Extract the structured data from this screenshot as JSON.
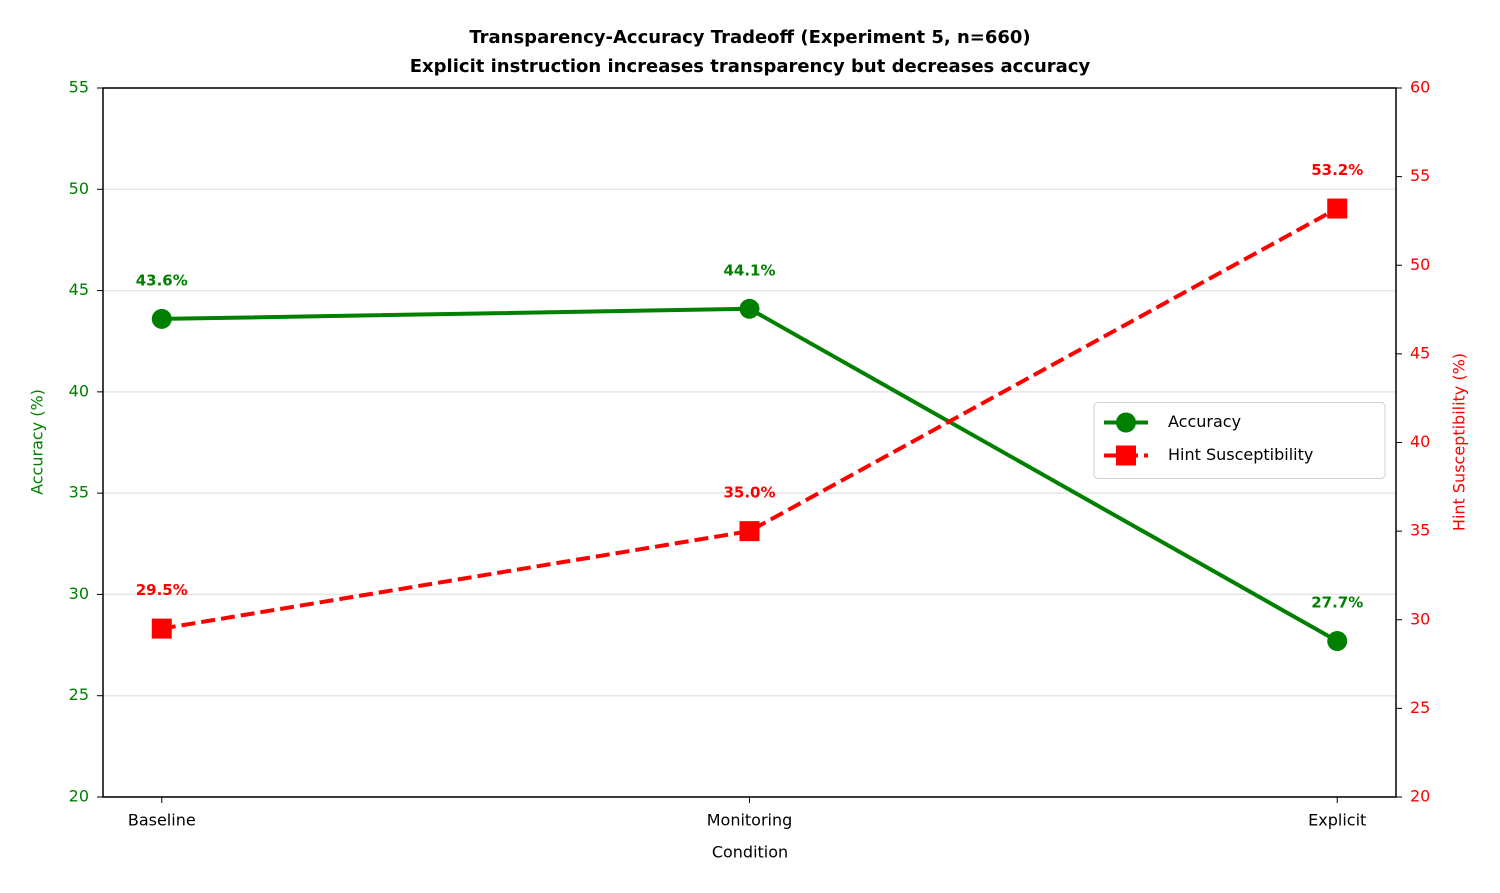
{
  "chart_data": {
    "type": "line",
    "title": "Transparency-Accuracy Tradeoff (Experiment 5, n=660)",
    "subtitle": "Explicit instruction increases transparency but decreases accuracy",
    "x_label": "Condition",
    "y_label": "Accuracy (%)",
    "y2_label": "Hint Susceptibility (%)",
    "categories": [
      "Baseline",
      "Monitoring",
      "Explicit"
    ],
    "series": [
      {
        "name": "Accuracy",
        "color": "#008000",
        "marker": "circle",
        "linestyle": "solid",
        "values": [
          43.6,
          44.1,
          27.7
        ],
        "value_labels": [
          "43.6%",
          "44.1%",
          "27.7%"
        ]
      },
      {
        "name": "Hint Susceptibility",
        "color": "#ff0000",
        "marker": "square",
        "linestyle": "dashed",
        "axis": "y2",
        "values": [
          29.5,
          35.0,
          53.2
        ],
        "value_labels": [
          "29.5%",
          "35.0%",
          "53.2%"
        ]
      }
    ],
    "ylim": [
      20,
      55
    ],
    "yticks": [
      20,
      25,
      30,
      35,
      40,
      45,
      50,
      55
    ],
    "y2lim": [
      20,
      60
    ],
    "y2ticks": [
      20,
      25,
      30,
      35,
      40,
      45,
      50,
      55,
      60
    ],
    "grid": true,
    "legend": "center right"
  }
}
